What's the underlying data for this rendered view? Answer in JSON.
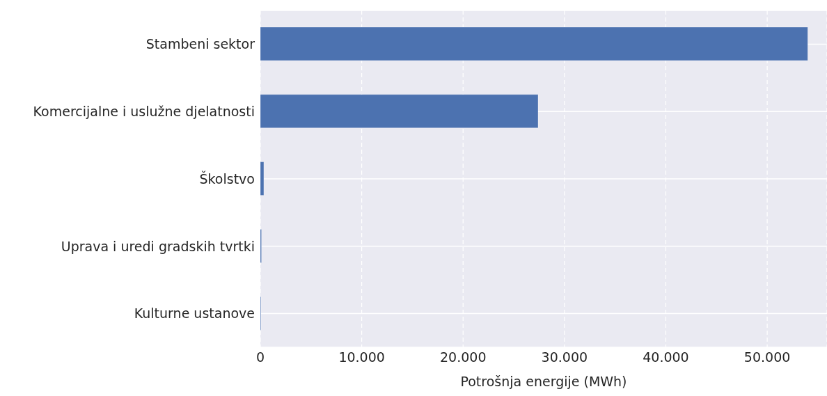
{
  "chart_data": {
    "type": "bar",
    "orientation": "horizontal",
    "xlabel": "Potrošnja energije (MWh)",
    "categories": [
      "Stambeni sektor",
      "Komercijalne i uslužne djelatnosti",
      "Školstvo",
      "Uprava i uredi gradskih tvrtki",
      "Kulturne ustanove"
    ],
    "values": [
      54000,
      27400,
      340,
      110,
      60
    ],
    "color": "#4c72b0",
    "xlim": [
      0,
      55900
    ],
    "xticks": [
      {
        "value": 0,
        "label": "0"
      },
      {
        "value": 10000,
        "label": "10.000"
      },
      {
        "value": 20000,
        "label": "20.000"
      },
      {
        "value": 30000,
        "label": "30.000"
      },
      {
        "value": 40000,
        "label": "40.000"
      },
      {
        "value": 50000,
        "label": "50.000"
      }
    ],
    "grid": true,
    "legend": false
  }
}
